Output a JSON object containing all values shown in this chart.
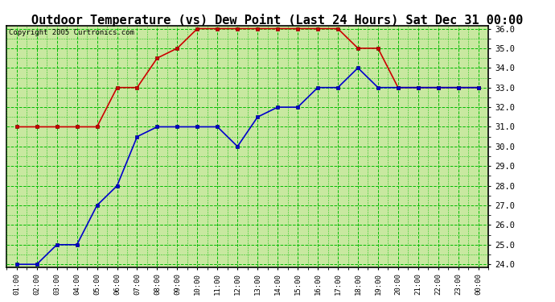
{
  "title": "Outdoor Temperature (vs) Dew Point (Last 24 Hours) Sat Dec 31 00:00",
  "copyright": "Copyright 2005 Curtronics.com",
  "x_labels": [
    "01:00",
    "02:00",
    "03:00",
    "04:00",
    "05:00",
    "06:00",
    "07:00",
    "08:00",
    "09:00",
    "10:00",
    "11:00",
    "12:00",
    "13:00",
    "14:00",
    "15:00",
    "16:00",
    "17:00",
    "18:00",
    "19:00",
    "20:00",
    "21:00",
    "22:00",
    "23:00",
    "00:00"
  ],
  "temp_values": [
    24.0,
    24.0,
    25.0,
    25.0,
    27.0,
    28.0,
    30.5,
    31.0,
    31.0,
    31.0,
    31.0,
    30.0,
    31.5,
    32.0,
    32.0,
    33.0,
    33.0,
    34.0,
    33.0,
    33.0,
    33.0,
    33.0,
    33.0,
    33.0
  ],
  "dew_values": [
    31.0,
    31.0,
    31.0,
    31.0,
    31.0,
    33.0,
    33.0,
    34.5,
    35.0,
    36.0,
    36.0,
    36.0,
    36.0,
    36.0,
    36.0,
    36.0,
    36.0,
    35.0,
    35.0,
    33.0,
    33.0,
    33.0,
    33.0,
    33.0
  ],
  "temp_color": "#0000cc",
  "dew_color": "#cc0000",
  "bg_color": "#c8e8a0",
  "grid_color": "#00bb00",
  "title_bg": "#ffffff",
  "y_min": 24.0,
  "y_max": 36.0,
  "y_step": 1.0,
  "marker": "s",
  "marker_size": 3,
  "line_width": 1.2
}
